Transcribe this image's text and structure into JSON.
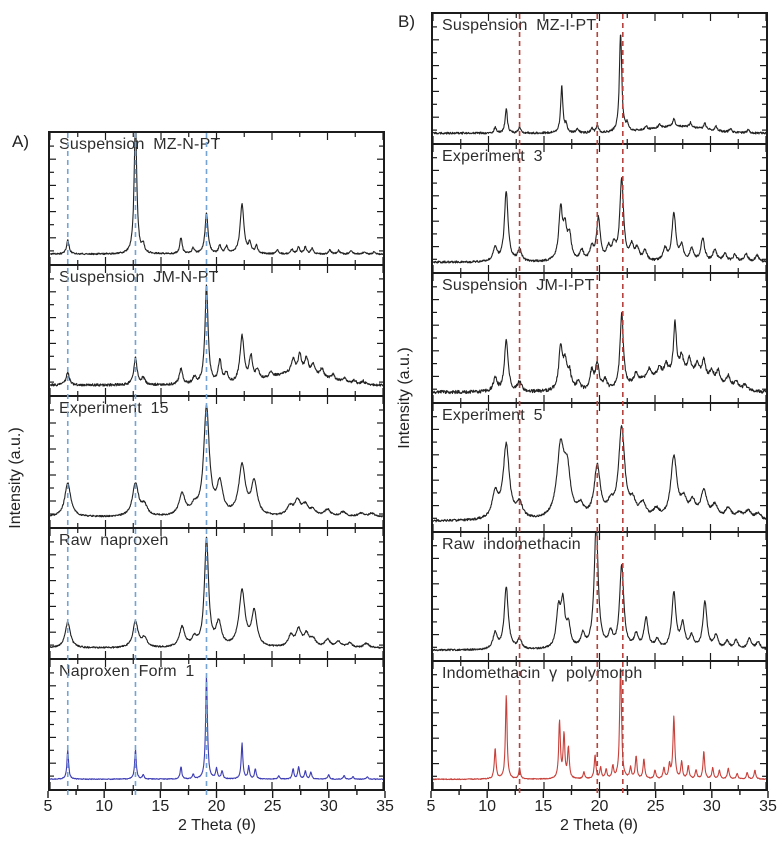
{
  "figure_title": "",
  "axis": {
    "x_label": "2 Theta (θ)",
    "y_label": "Intensity (a.u.)"
  },
  "colors": {
    "trace_black": "#222222",
    "trace_blue": "#3c3cb4",
    "trace_red": "#c8403a",
    "guide_blue": "#74a3d4",
    "guide_red": "#b5423c",
    "frame": "#1c1c1c"
  },
  "chart_data": [
    {
      "id": "a",
      "panel_tag": "A)",
      "type": "line",
      "xlabel": "2 Theta (θ)",
      "ylabel": "Intensity (a.u.)",
      "xlim": [
        5,
        35
      ],
      "x_ticks": [
        5,
        10,
        15,
        20,
        25,
        30,
        35
      ],
      "y_units": "arbitrary (stacked offset traces)",
      "guide_lines": {
        "style": "dashed",
        "color": "#74a3d4",
        "positions": [
          6.6,
          12.7,
          19.1
        ]
      },
      "series": [
        {
          "name": "Suspension MZ-N-PT",
          "color": "#222222",
          "peak_width": 0.13,
          "noise": 0.7,
          "humps": [],
          "peaks": [
            [
              6.6,
              13
            ],
            [
              12.7,
              118,
              0.14
            ],
            [
              13.4,
              7
            ],
            [
              16.8,
              14
            ],
            [
              17.9,
              5
            ],
            [
              19.1,
              36,
              0.16
            ],
            [
              20.3,
              7
            ],
            [
              20.9,
              6
            ],
            [
              22.3,
              44,
              0.2
            ],
            [
              23.0,
              9
            ],
            [
              23.6,
              7
            ],
            [
              25.5,
              3
            ],
            [
              26.8,
              4
            ],
            [
              27.4,
              6
            ],
            [
              28.0,
              6
            ],
            [
              28.6,
              5
            ],
            [
              30.2,
              4
            ],
            [
              31.0,
              3
            ],
            [
              32.1,
              3
            ],
            [
              33.3,
              2
            ],
            [
              34.2,
              2
            ]
          ]
        },
        {
          "name": "Suspension JM-N-PT",
          "color": "#222222",
          "peak_width": 0.18,
          "noise": 1.1,
          "humps": [
            [
              27.3,
              11,
              3.4
            ]
          ],
          "peaks": [
            [
              6.6,
              11
            ],
            [
              12.7,
              24
            ],
            [
              13.4,
              6
            ],
            [
              16.8,
              14
            ],
            [
              18.0,
              6
            ],
            [
              19.1,
              88,
              0.17
            ],
            [
              20.3,
              20
            ],
            [
              20.9,
              9
            ],
            [
              22.3,
              42,
              0.22
            ],
            [
              23.1,
              22
            ],
            [
              23.7,
              9
            ],
            [
              24.9,
              5
            ],
            [
              26.9,
              12
            ],
            [
              27.5,
              16
            ],
            [
              28.1,
              13
            ],
            [
              28.7,
              9
            ],
            [
              29.5,
              7
            ],
            [
              30.5,
              5
            ],
            [
              31.5,
              4
            ],
            [
              32.4,
              3
            ],
            [
              33.2,
              3
            ]
          ]
        },
        {
          "name": "Experiment 15",
          "color": "#222222",
          "peak_width": 0.32,
          "noise": 0.7,
          "humps": [],
          "peaks": [
            [
              6.6,
              30
            ],
            [
              12.7,
              29
            ],
            [
              13.5,
              9
            ],
            [
              16.9,
              19
            ],
            [
              18.0,
              7
            ],
            [
              19.1,
              96,
              0.3
            ],
            [
              20.3,
              27
            ],
            [
              22.3,
              44,
              0.35
            ],
            [
              23.4,
              29
            ],
            [
              26.6,
              8
            ],
            [
              27.3,
              13
            ],
            [
              28.0,
              9
            ],
            [
              28.7,
              5
            ],
            [
              30.0,
              6
            ],
            [
              31.4,
              4
            ],
            [
              33.0,
              3
            ],
            [
              34.0,
              3
            ]
          ]
        },
        {
          "name": "Raw naproxen",
          "color": "#222222",
          "peak_width": 0.28,
          "noise": 0.7,
          "humps": [],
          "peaks": [
            [
              6.6,
              23
            ],
            [
              12.7,
              23
            ],
            [
              13.5,
              8
            ],
            [
              16.9,
              18
            ],
            [
              18.0,
              7
            ],
            [
              19.1,
              97,
              0.22
            ],
            [
              20.2,
              21
            ],
            [
              22.3,
              50,
              0.32
            ],
            [
              23.4,
              31
            ],
            [
              26.7,
              10
            ],
            [
              27.4,
              15
            ],
            [
              28.1,
              11
            ],
            [
              28.7,
              7
            ],
            [
              30.0,
              7
            ],
            [
              31.0,
              5
            ],
            [
              32.0,
              4
            ],
            [
              33.5,
              4
            ]
          ]
        },
        {
          "name": "Naproxen Form 1",
          "color": "#3c3cb4",
          "peak_width": 0.09,
          "noise": 0.35,
          "humps": [],
          "peaks": [
            [
              6.6,
              26
            ],
            [
              12.7,
              26
            ],
            [
              13.4,
              4
            ],
            [
              16.8,
              11
            ],
            [
              17.9,
              4
            ],
            [
              19.1,
              92,
              0.1
            ],
            [
              20.0,
              9
            ],
            [
              20.5,
              7
            ],
            [
              22.3,
              32
            ],
            [
              22.9,
              11
            ],
            [
              23.5,
              9
            ],
            [
              25.6,
              3
            ],
            [
              26.9,
              9
            ],
            [
              27.4,
              11
            ],
            [
              28.0,
              7
            ],
            [
              28.5,
              6
            ],
            [
              30.1,
              4
            ],
            [
              31.5,
              3
            ],
            [
              32.3,
              2
            ],
            [
              33.6,
              2
            ]
          ]
        }
      ]
    },
    {
      "id": "b",
      "panel_tag": "B)",
      "type": "line",
      "xlabel": "2 Theta (θ)",
      "ylabel": "Intensity (a.u.)",
      "xlim": [
        5,
        35
      ],
      "x_ticks": [
        5,
        10,
        15,
        20,
        25,
        30,
        35
      ],
      "y_units": "arbitrary (stacked offset traces)",
      "guide_lines": {
        "style": "dashed",
        "color": "#b5423c",
        "positions": [
          12.8,
          19.8,
          22.1
        ]
      },
      "series": [
        {
          "name": "Suspension MZ-I-PT",
          "color": "#222222",
          "peak_width": 0.12,
          "noise": 0.9,
          "humps": [
            [
              27.0,
              6,
              3.5
            ]
          ],
          "peaks": [
            [
              10.6,
              5
            ],
            [
              11.6,
              22
            ],
            [
              12.8,
              5
            ],
            [
              16.6,
              42
            ],
            [
              17.0,
              7
            ],
            [
              18.0,
              4
            ],
            [
              19.3,
              4
            ],
            [
              19.8,
              7
            ],
            [
              21.9,
              88,
              0.13
            ],
            [
              22.5,
              6
            ],
            [
              24.2,
              3
            ],
            [
              25.4,
              3
            ],
            [
              26.7,
              7
            ],
            [
              28.2,
              4
            ],
            [
              29.5,
              5
            ],
            [
              30.5,
              4
            ],
            [
              31.8,
              3
            ],
            [
              33.4,
              3
            ]
          ]
        },
        {
          "name": "Experiment 3",
          "color": "#222222",
          "peak_width": 0.2,
          "noise": 1.0,
          "humps": [],
          "peaks": [
            [
              10.6,
              13
            ],
            [
              11.6,
              64
            ],
            [
              12.8,
              11
            ],
            [
              16.5,
              46
            ],
            [
              16.9,
              26
            ],
            [
              17.3,
              21
            ],
            [
              18.4,
              9
            ],
            [
              19.3,
              11
            ],
            [
              19.9,
              39
            ],
            [
              20.8,
              11
            ],
            [
              21.3,
              13
            ],
            [
              22.0,
              74
            ],
            [
              22.9,
              13
            ],
            [
              23.4,
              11
            ],
            [
              24.1,
              9
            ],
            [
              25.9,
              11
            ],
            [
              26.7,
              44
            ],
            [
              27.4,
              13
            ],
            [
              28.3,
              11
            ],
            [
              29.3,
              21
            ],
            [
              30.4,
              11
            ],
            [
              31.3,
              7
            ],
            [
              32.2,
              6
            ],
            [
              33.2,
              7
            ],
            [
              34.2,
              6
            ]
          ]
        },
        {
          "name": "Suspension JM-I-PT",
          "color": "#222222",
          "peak_width": 0.2,
          "noise": 1.5,
          "humps": [
            [
              27.3,
              15,
              3.8
            ],
            [
              24.0,
              4,
              1.5
            ]
          ],
          "peaks": [
            [
              10.6,
              12
            ],
            [
              11.6,
              46
            ],
            [
              12.8,
              9
            ],
            [
              16.5,
              39
            ],
            [
              16.9,
              23
            ],
            [
              17.3,
              15
            ],
            [
              18.1,
              8
            ],
            [
              19.3,
              17
            ],
            [
              19.8,
              24
            ],
            [
              20.5,
              9
            ],
            [
              22.0,
              68,
              0.18
            ],
            [
              23.3,
              8
            ],
            [
              24.5,
              8
            ],
            [
              25.4,
              8
            ],
            [
              26.0,
              10
            ],
            [
              26.8,
              46,
              0.16
            ],
            [
              27.4,
              16
            ],
            [
              28.1,
              14
            ],
            [
              28.8,
              12
            ],
            [
              29.4,
              16
            ],
            [
              30.1,
              10
            ],
            [
              30.7,
              12
            ],
            [
              31.6,
              10
            ],
            [
              32.3,
              7
            ],
            [
              33.1,
              5
            ]
          ]
        },
        {
          "name": "Experiment 5",
          "color": "#222222",
          "peak_width": 0.33,
          "noise": 1.0,
          "humps": [],
          "peaks": [
            [
              10.6,
              23
            ],
            [
              11.6,
              67
            ],
            [
              12.8,
              13
            ],
            [
              16.5,
              64,
              0.4
            ],
            [
              17.1,
              38
            ],
            [
              18.3,
              10
            ],
            [
              19.8,
              47
            ],
            [
              21.0,
              11
            ],
            [
              22.0,
              82
            ],
            [
              23.0,
              13
            ],
            [
              23.9,
              13
            ],
            [
              25.1,
              8
            ],
            [
              26.7,
              56
            ],
            [
              27.6,
              15
            ],
            [
              28.4,
              14
            ],
            [
              29.4,
              25
            ],
            [
              30.4,
              12
            ],
            [
              31.6,
              10
            ],
            [
              32.6,
              6
            ],
            [
              33.4,
              8
            ],
            [
              34.3,
              6
            ]
          ]
        },
        {
          "name": "Raw indomethacin",
          "color": "#222222",
          "peak_width": 0.22,
          "noise": 0.8,
          "humps": [],
          "peaks": [
            [
              10.6,
              15
            ],
            [
              11.6,
              56
            ],
            [
              12.8,
              9
            ],
            [
              16.3,
              33
            ],
            [
              16.7,
              39
            ],
            [
              17.2,
              19
            ],
            [
              18.5,
              12
            ],
            [
              19.7,
              112,
              0.22
            ],
            [
              21.0,
              13
            ],
            [
              22.0,
              76
            ],
            [
              23.3,
              12
            ],
            [
              24.2,
              28
            ],
            [
              25.2,
              8
            ],
            [
              26.7,
              51
            ],
            [
              27.5,
              22
            ],
            [
              28.3,
              11
            ],
            [
              29.5,
              43
            ],
            [
              30.5,
              12
            ],
            [
              31.5,
              7
            ],
            [
              32.3,
              8
            ],
            [
              33.5,
              10
            ],
            [
              34.3,
              7
            ]
          ]
        },
        {
          "name": "Indomethacin γ polymorph",
          "color": "#c8403a",
          "peak_width": 0.09,
          "noise": 0.4,
          "humps": [],
          "peaks": [
            [
              10.6,
              28
            ],
            [
              11.6,
              76
            ],
            [
              12.8,
              10
            ],
            [
              16.4,
              52
            ],
            [
              16.8,
              40
            ],
            [
              17.2,
              28
            ],
            [
              18.6,
              6
            ],
            [
              19.6,
              22
            ],
            [
              20.1,
              10
            ],
            [
              20.6,
              8
            ],
            [
              21.2,
              11
            ],
            [
              21.9,
              102,
              0.1
            ],
            [
              22.8,
              10
            ],
            [
              23.3,
              20
            ],
            [
              24.0,
              18
            ],
            [
              25.0,
              8
            ],
            [
              25.8,
              10
            ],
            [
              26.3,
              12
            ],
            [
              26.7,
              56,
              0.1
            ],
            [
              27.4,
              15
            ],
            [
              28.0,
              12
            ],
            [
              28.7,
              8
            ],
            [
              29.4,
              25
            ],
            [
              30.2,
              10
            ],
            [
              30.8,
              8
            ],
            [
              31.6,
              10
            ],
            [
              32.4,
              5
            ],
            [
              33.3,
              6
            ],
            [
              34.0,
              8
            ]
          ]
        }
      ]
    }
  ]
}
